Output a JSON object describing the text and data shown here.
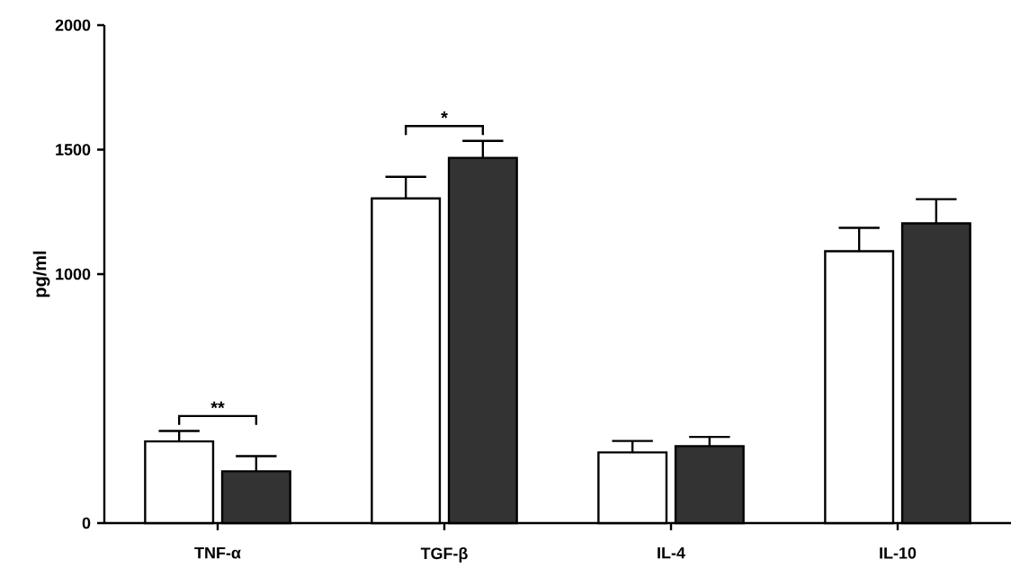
{
  "chart_data": {
    "type": "bar",
    "ylabel": "pg/ml",
    "categories": [
      "TNF-α",
      "TGF-β",
      "IL-4",
      "IL-10"
    ],
    "series": [
      {
        "color": "#ffffff",
        "values": [
          328,
          1304,
          284,
          1092
        ],
        "errors": [
          [
            328,
            370
          ],
          [
            1304,
            1391
          ],
          [
            284,
            330
          ],
          [
            1092,
            1186
          ]
        ]
      },
      {
        "color": "#333333",
        "values": [
          208,
          1467,
          309,
          1204
        ],
        "errors": [
          [
            208,
            269
          ],
          [
            1467,
            1535
          ],
          [
            309,
            346
          ],
          [
            1204,
            1301
          ]
        ]
      }
    ],
    "ylim": [
      0,
      2000
    ],
    "yticks": [
      0,
      1000,
      1500,
      2000
    ],
    "grid": false,
    "annotations": [
      "**",
      "*"
    ]
  }
}
